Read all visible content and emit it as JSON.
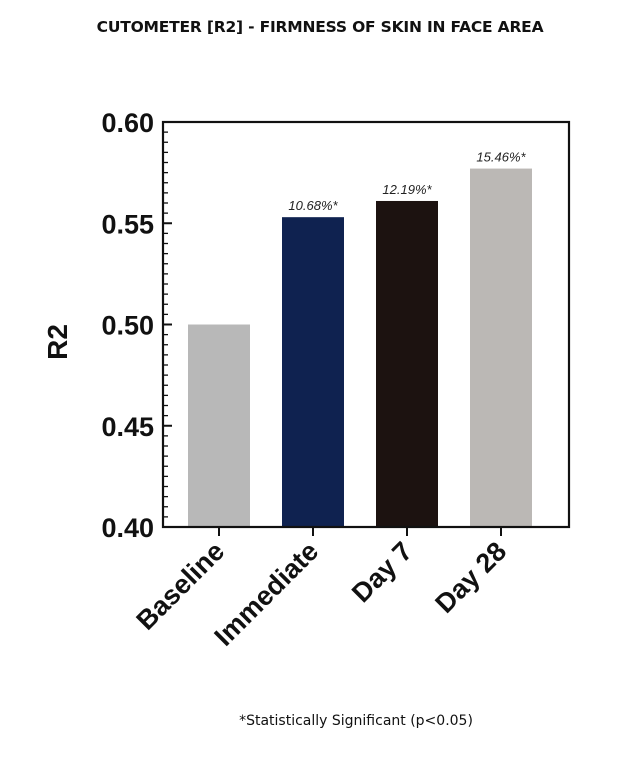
{
  "title": "CUTOMETER [R2] - FIRMNESS OF SKIN IN FACE AREA",
  "footnote": "*Statistically Significant (p<0.05)",
  "chart_data": {
    "type": "bar",
    "title": "CUTOMETER [R2] - FIRMNESS OF SKIN IN FACE AREA",
    "xlabel": "",
    "ylabel": "R2",
    "categories": [
      "Baseline",
      "Immediate",
      "Day 7",
      "Day 28"
    ],
    "values": [
      0.5,
      0.553,
      0.561,
      0.577
    ],
    "annotations": [
      "",
      "10.68%*",
      "12.19%*",
      "15.46%*"
    ],
    "colors": [
      "#b8b8b8",
      "#0f2250",
      "#1c1210",
      "#bbb8b5"
    ],
    "ylim": [
      0.4,
      0.6
    ],
    "yticks": [
      "0.60",
      "0.55",
      "0.50",
      "0.45",
      "0.40"
    ],
    "grid": false,
    "legend": null,
    "footnote": "*Statistically Significant (p<0.05)"
  }
}
